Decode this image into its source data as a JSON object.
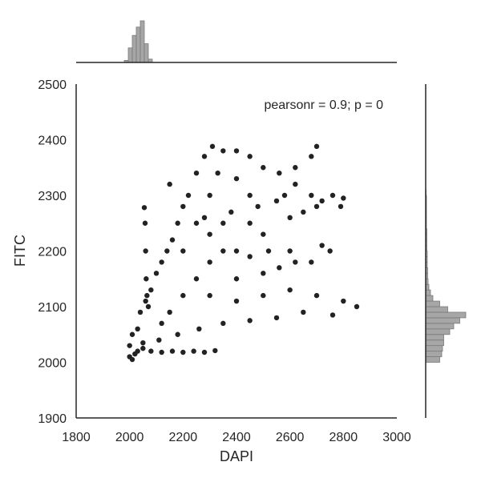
{
  "chart_data": {
    "type": "scatter",
    "title": "",
    "xlabel": "DAPI",
    "ylabel": "FITC",
    "xlim": [
      1800,
      3000
    ],
    "ylim": [
      1900,
      2500
    ],
    "xticks": [
      1800,
      2000,
      2200,
      2400,
      2600,
      2800,
      3000
    ],
    "yticks": [
      1900,
      2000,
      2100,
      2200,
      2300,
      2400,
      2500
    ],
    "annotation": "pearsonr = 0.9; p = 0",
    "grid": false,
    "colors": {
      "points": "#222222",
      "hist_fill": "#a6a6a6",
      "hist_edge": "#7a7a7a",
      "axis": "#262626"
    },
    "series": [
      {
        "values_description_free": true,
        "points": [
          [
            2000,
            2010
          ],
          [
            2010,
            2005
          ],
          [
            2020,
            2015
          ],
          [
            2030,
            2020
          ],
          [
            2050,
            2025
          ],
          [
            2080,
            2020
          ],
          [
            2120,
            2018
          ],
          [
            2160,
            2020
          ],
          [
            2200,
            2018
          ],
          [
            2240,
            2020
          ],
          [
            2280,
            2018
          ],
          [
            2320,
            2021
          ],
          [
            2000,
            2030
          ],
          [
            2010,
            2050
          ],
          [
            2030,
            2060
          ],
          [
            2040,
            2090
          ],
          [
            2060,
            2110
          ],
          [
            2080,
            2130
          ],
          [
            2100,
            2160
          ],
          [
            2120,
            2180
          ],
          [
            2140,
            2200
          ],
          [
            2160,
            2220
          ],
          [
            2180,
            2250
          ],
          [
            2200,
            2280
          ],
          [
            2220,
            2300
          ],
          [
            2250,
            2340
          ],
          [
            2280,
            2370
          ],
          [
            2310,
            2388
          ],
          [
            2350,
            2380
          ],
          [
            2400,
            2380
          ],
          [
            2450,
            2370
          ],
          [
            2500,
            2350
          ],
          [
            2560,
            2340
          ],
          [
            2620,
            2350
          ],
          [
            2680,
            2370
          ],
          [
            2700,
            2388
          ],
          [
            2680,
            2300
          ],
          [
            2720,
            2290
          ],
          [
            2760,
            2300
          ],
          [
            2800,
            2295
          ],
          [
            2790,
            2280
          ],
          [
            2700,
            2280
          ],
          [
            2600,
            2260
          ],
          [
            2500,
            2230
          ],
          [
            2400,
            2200
          ],
          [
            2300,
            2180
          ],
          [
            2250,
            2150
          ],
          [
            2300,
            2120
          ],
          [
            2400,
            2110
          ],
          [
            2500,
            2120
          ],
          [
            2600,
            2130
          ],
          [
            2700,
            2120
          ],
          [
            2800,
            2110
          ],
          [
            2850,
            2100
          ],
          [
            2760,
            2085
          ],
          [
            2650,
            2090
          ],
          [
            2550,
            2080
          ],
          [
            2450,
            2075
          ],
          [
            2350,
            2070
          ],
          [
            2260,
            2060
          ],
          [
            2180,
            2050
          ],
          [
            2110,
            2040
          ],
          [
            2050,
            2035
          ],
          [
            2055,
            2278
          ],
          [
            2058,
            2250
          ],
          [
            2060,
            2200
          ],
          [
            2062,
            2150
          ],
          [
            2065,
            2120
          ],
          [
            2070,
            2100
          ],
          [
            2150,
            2320
          ],
          [
            2350,
            2250
          ],
          [
            2450,
            2300
          ],
          [
            2550,
            2290
          ],
          [
            2650,
            2270
          ],
          [
            2750,
            2200
          ],
          [
            2600,
            2200
          ],
          [
            2500,
            2160
          ],
          [
            2400,
            2150
          ],
          [
            2300,
            2230
          ],
          [
            2200,
            2120
          ],
          [
            2150,
            2090
          ],
          [
            2120,
            2070
          ],
          [
            2300,
            2300
          ],
          [
            2330,
            2340
          ],
          [
            2400,
            2330
          ],
          [
            2450,
            2250
          ],
          [
            2520,
            2200
          ],
          [
            2560,
            2170
          ],
          [
            2620,
            2180
          ],
          [
            2680,
            2180
          ],
          [
            2720,
            2210
          ],
          [
            2620,
            2320
          ],
          [
            2580,
            2300
          ],
          [
            2480,
            2280
          ],
          [
            2380,
            2270
          ],
          [
            2280,
            2260
          ],
          [
            2200,
            2200
          ],
          [
            2250,
            2250
          ],
          [
            2350,
            2200
          ],
          [
            2450,
            2190
          ]
        ]
      }
    ],
    "marginal_x": {
      "bins": [
        1980,
        1995,
        2010,
        2025,
        2040,
        2055,
        2070,
        2085
      ],
      "counts": [
        0.05,
        0.35,
        0.65,
        0.85,
        1.0,
        0.45,
        0.08,
        0.0
      ]
    },
    "marginal_y": {
      "bins": [
        2000,
        2010,
        2020,
        2030,
        2040,
        2050,
        2060,
        2070,
        2080,
        2090,
        2100,
        2110,
        2120,
        2130,
        2140,
        2150,
        2160,
        2170,
        2180,
        2190,
        2200,
        2210,
        2220,
        2230,
        2240,
        2250,
        2260,
        2270,
        2280,
        2290,
        2300
      ],
      "counts": [
        0.35,
        0.4,
        0.42,
        0.45,
        0.45,
        0.6,
        0.7,
        0.85,
        1.0,
        0.55,
        0.35,
        0.18,
        0.12,
        0.08,
        0.06,
        0.05,
        0.05,
        0.04,
        0.04,
        0.04,
        0.03,
        0.03,
        0.03,
        0.03,
        0.02,
        0.02,
        0.02,
        0.02,
        0.02,
        0.02,
        0.01
      ]
    }
  }
}
